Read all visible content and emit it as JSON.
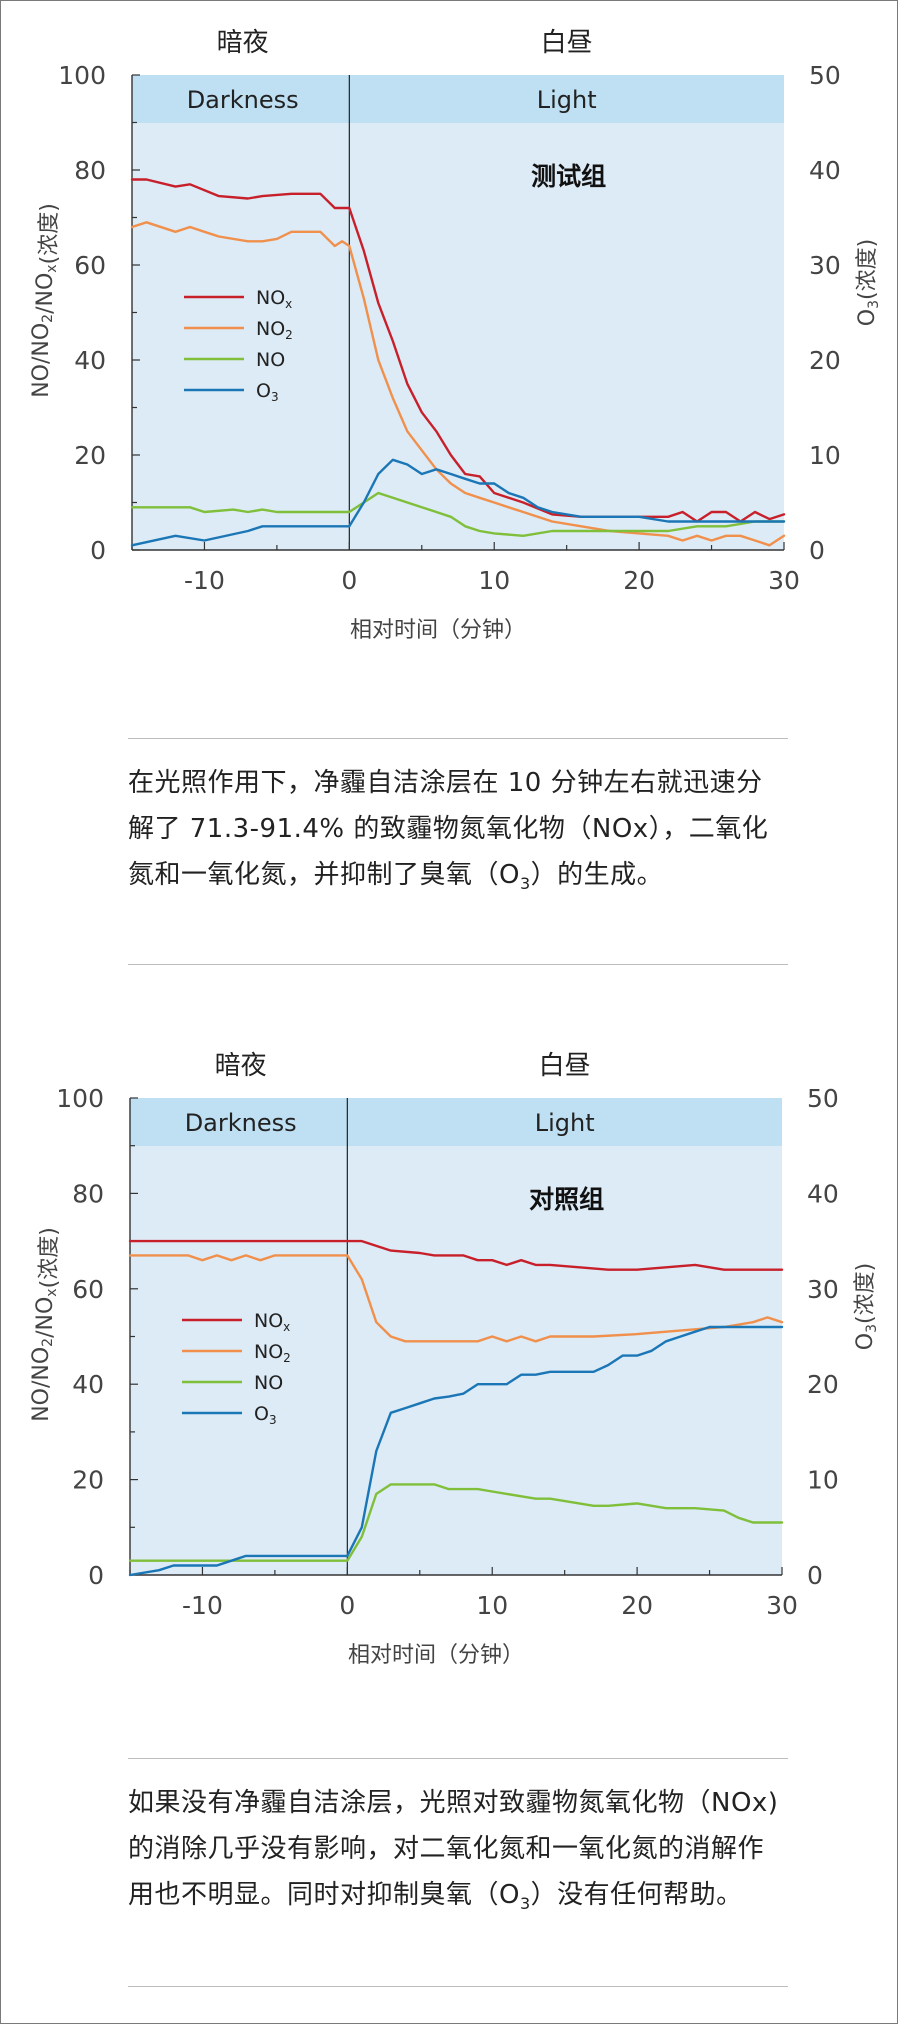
{
  "charts": [
    {
      "group_label": "测试组",
      "caption_parts": [
        "在光照作用下，净霾自洁涂层在 10 分钟左右就迅速分解了 71.3-91.4% 的致霾物氮氧化物（NOx），二氧化氮和一氧化氮，并抑制了臭氧（O",
        "3",
        "）的生成。"
      ]
    },
    {
      "group_label": "对照组",
      "caption_parts": [
        "如果没有净霾自洁涂层，光照对致霾物氮氧化物（NOx) 的消除几乎没有影响，对二氧化氮和一氧化氮的消解作用也不明显。同时对抑制臭氧（O",
        "3",
        "）没有任何帮助。"
      ]
    }
  ],
  "chart_data": [
    {
      "type": "line",
      "title": "测试组",
      "period_labels": {
        "dark_cn": "暗夜",
        "light_cn": "白昼",
        "dark_en": "Darkness",
        "light_en": "Light"
      },
      "xlabel": "相对时间（分钟）",
      "ylabel_left": "NO/NO2/NOx(浓度)",
      "ylabel_right": "O3(浓度)",
      "xlim": [
        -15,
        30
      ],
      "xticks": [
        -10,
        0,
        10,
        20,
        30
      ],
      "ylim_left": [
        0,
        100
      ],
      "yticks_left": [
        0,
        20,
        40,
        60,
        80,
        100
      ],
      "ylim_right": [
        0,
        50
      ],
      "yticks_right": [
        0,
        10,
        20,
        30,
        40,
        50
      ],
      "series": [
        {
          "name": "NOx",
          "axis": "left",
          "color": "#c8202a",
          "x": [
            -15,
            -14,
            -12,
            -11,
            -9,
            -7,
            -6,
            -4,
            -2,
            -1,
            0,
            1,
            2,
            3,
            4,
            5,
            6,
            7,
            8,
            9,
            10,
            12,
            14,
            16,
            18,
            20,
            22,
            23,
            24,
            25,
            26,
            27,
            28,
            29,
            30
          ],
          "y": [
            78,
            78,
            76.5,
            77,
            74.5,
            74,
            74.5,
            75,
            75,
            72,
            72,
            63,
            52,
            44,
            35,
            29,
            25,
            20,
            16,
            15.5,
            12,
            10,
            7.5,
            7,
            7,
            7,
            7,
            8,
            6,
            8,
            8,
            6,
            8,
            6.5,
            7.5
          ]
        },
        {
          "name": "NO2",
          "axis": "left",
          "color": "#f0904c",
          "x": [
            -15,
            -14,
            -12,
            -11,
            -10,
            -9,
            -7,
            -6,
            -5,
            -4,
            -3,
            -2,
            -1,
            -0.5,
            0,
            1,
            2,
            3,
            4,
            5,
            6,
            7,
            8,
            9,
            10,
            11,
            12,
            14,
            16,
            18,
            20,
            22,
            23,
            24,
            25,
            26,
            27,
            28,
            29,
            30
          ],
          "y": [
            68,
            69,
            67,
            68,
            67,
            66,
            65,
            65,
            65.5,
            67,
            67,
            67,
            64,
            65,
            64,
            53,
            40,
            32,
            25,
            21,
            17,
            14,
            12,
            11,
            10,
            9,
            8,
            6,
            5,
            4,
            3.5,
            3,
            2,
            3,
            2,
            3,
            3,
            2,
            1,
            3
          ]
        },
        {
          "name": "NO",
          "axis": "left",
          "color": "#7fbf3a",
          "x": [
            -15,
            -11,
            -10,
            -8,
            -7,
            -6,
            -5,
            -4,
            -1,
            0,
            1,
            2,
            4,
            6,
            7,
            8,
            9,
            10,
            12,
            14,
            16,
            18,
            20,
            22,
            24,
            26,
            28,
            30
          ],
          "y": [
            9,
            9,
            8,
            8.5,
            8,
            8.5,
            8,
            8,
            8,
            8,
            10,
            12,
            10,
            8,
            7,
            5,
            4,
            3.5,
            3,
            4,
            4,
            4,
            4,
            4,
            5,
            5,
            6,
            6
          ]
        },
        {
          "name": "O3",
          "axis": "right",
          "color": "#1b76b6",
          "x": [
            -15,
            -12,
            -10,
            -7,
            -6,
            -4,
            -2,
            0,
            1,
            2,
            3,
            4,
            5,
            6,
            7,
            8,
            9,
            10,
            11,
            12,
            13,
            14,
            16,
            18,
            20,
            22,
            24,
            26,
            28,
            30
          ],
          "y": [
            0.5,
            1.5,
            1,
            2,
            2.5,
            2.5,
            2.5,
            2.5,
            5,
            8,
            9.5,
            9,
            8,
            8.5,
            8,
            7.5,
            7,
            7,
            6,
            5.5,
            4.5,
            4,
            3.5,
            3.5,
            3.5,
            3,
            3,
            3,
            3,
            3
          ]
        }
      ]
    },
    {
      "type": "line",
      "title": "对照组",
      "period_labels": {
        "dark_cn": "暗夜",
        "light_cn": "白昼",
        "dark_en": "Darkness",
        "light_en": "Light"
      },
      "xlabel": "相对时间（分钟）",
      "ylabel_left": "NO/NO2/NOx(浓度)",
      "ylabel_right": "O3(浓度)",
      "xlim": [
        -15,
        30
      ],
      "xticks": [
        -10,
        0,
        10,
        20,
        30
      ],
      "ylim_left": [
        0,
        100
      ],
      "yticks_left": [
        0,
        20,
        40,
        60,
        80,
        100
      ],
      "ylim_right": [
        0,
        50
      ],
      "yticks_right": [
        0,
        10,
        20,
        30,
        40,
        50
      ],
      "series": [
        {
          "name": "NOx",
          "axis": "left",
          "color": "#c8202a",
          "x": [
            -15,
            -5,
            0,
            1,
            2,
            3,
            5,
            6,
            8,
            9,
            10,
            11,
            12,
            13,
            14,
            16,
            18,
            20,
            22,
            24,
            26,
            28,
            30
          ],
          "y": [
            70,
            70,
            70,
            70,
            69,
            68,
            67.5,
            67,
            67,
            66,
            66,
            65,
            66,
            65,
            65,
            64.5,
            64,
            64,
            64.5,
            65,
            64,
            64,
            64
          ]
        },
        {
          "name": "NO2",
          "axis": "left",
          "color": "#f0904c",
          "x": [
            -15,
            -11,
            -10,
            -9,
            -8,
            -7,
            -6,
            -5,
            -4,
            -3,
            -2,
            0,
            1,
            2,
            3,
            4,
            5,
            6,
            8,
            9,
            10,
            11,
            12,
            13,
            14,
            15,
            17,
            20,
            22,
            24,
            26,
            28,
            29,
            30
          ],
          "y": [
            67,
            67,
            66,
            67,
            66,
            67,
            66,
            67,
            67,
            67,
            67,
            67,
            62,
            53,
            50,
            49,
            49,
            49,
            49,
            49,
            50,
            49,
            50,
            49,
            50,
            50,
            50,
            50.5,
            51,
            51.5,
            52,
            53,
            54,
            53
          ]
        },
        {
          "name": "NO",
          "axis": "left",
          "color": "#7fbf3a",
          "x": [
            -15,
            -5,
            0,
            1,
            2,
            3,
            5,
            6,
            7,
            9,
            10,
            11,
            12,
            13,
            14,
            15,
            16,
            17,
            18,
            20,
            22,
            24,
            26,
            27,
            28,
            30
          ],
          "y": [
            3,
            3,
            3,
            8,
            17,
            19,
            19,
            19,
            18,
            18,
            17.5,
            17,
            16.5,
            16,
            16,
            15.5,
            15,
            14.5,
            14.5,
            15,
            14,
            14,
            13.5,
            12,
            11,
            11
          ]
        },
        {
          "name": "O3",
          "axis": "right",
          "color": "#1b76b6",
          "x": [
            -15,
            -13,
            -12,
            -11,
            -9,
            -8,
            -7,
            -6,
            -5,
            -4,
            0,
            1,
            2,
            3,
            4,
            5,
            6,
            7,
            8,
            9,
            10,
            11,
            12,
            13,
            14,
            15,
            16,
            17,
            18,
            19,
            20,
            21,
            22,
            23,
            24,
            25,
            26,
            27,
            28,
            29,
            30
          ],
          "y": [
            0,
            0.5,
            1,
            1,
            1,
            1.5,
            2,
            2,
            2,
            2,
            2,
            5,
            13,
            17,
            17.5,
            18,
            18.5,
            18.7,
            19,
            20,
            20,
            20,
            21,
            21,
            21.3,
            21.3,
            21.3,
            21.3,
            22,
            23,
            23,
            23.5,
            24.5,
            25,
            25.5,
            26,
            26,
            26,
            26,
            26,
            26
          ]
        }
      ]
    }
  ]
}
